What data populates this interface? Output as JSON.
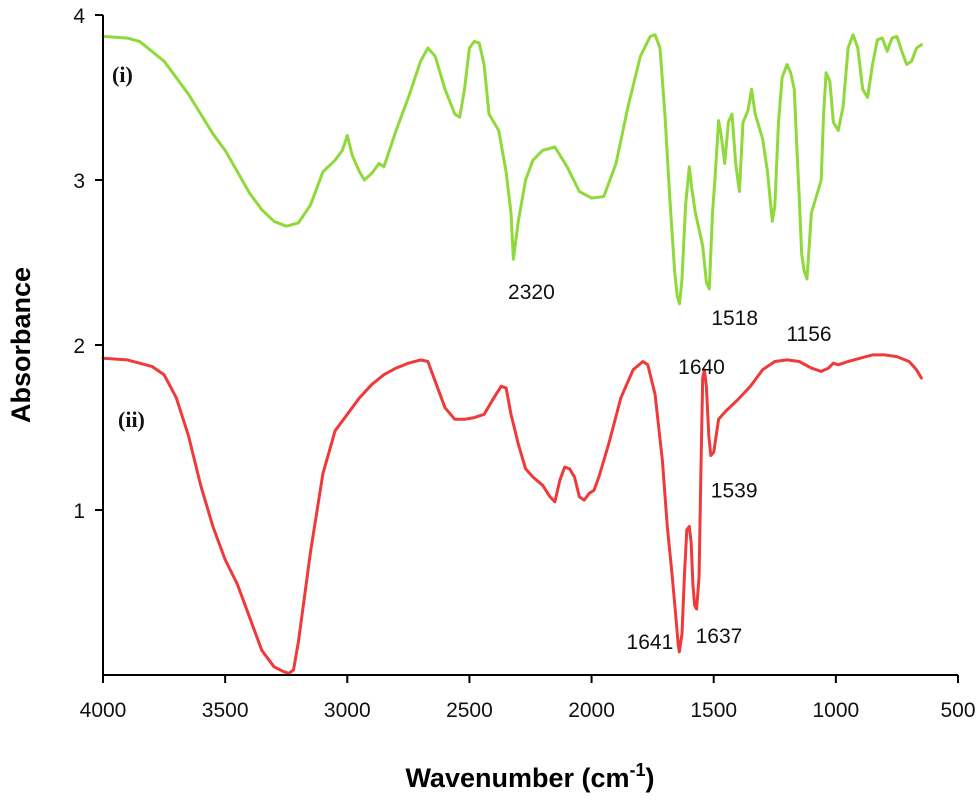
{
  "chart_data": {
    "type": "line",
    "xlabel": "Wavenumber (cm",
    "xlabel_sup": "-1",
    "xlabel_close": ")",
    "ylabel": "Absorbance",
    "xlim": [
      4000,
      500
    ],
    "ylim": [
      0,
      4
    ],
    "x_ticks": [
      "4000",
      "3500",
      "3000",
      "2500",
      "2000",
      "1500",
      "1000",
      "500"
    ],
    "y_ticks": [
      "1",
      "2",
      "3",
      "4"
    ],
    "grid": false,
    "series": [
      {
        "name": "(i)",
        "color": "#8fd93a",
        "points": [
          [
            4000,
            3.87
          ],
          [
            3900,
            3.86
          ],
          [
            3850,
            3.84
          ],
          [
            3800,
            3.78
          ],
          [
            3750,
            3.72
          ],
          [
            3700,
            3.62
          ],
          [
            3650,
            3.52
          ],
          [
            3600,
            3.4
          ],
          [
            3550,
            3.28
          ],
          [
            3500,
            3.18
          ],
          [
            3450,
            3.05
          ],
          [
            3400,
            2.92
          ],
          [
            3350,
            2.82
          ],
          [
            3300,
            2.75
          ],
          [
            3250,
            2.72
          ],
          [
            3200,
            2.74
          ],
          [
            3150,
            2.85
          ],
          [
            3100,
            3.05
          ],
          [
            3050,
            3.12
          ],
          [
            3020,
            3.18
          ],
          [
            3000,
            3.27
          ],
          [
            2980,
            3.15
          ],
          [
            2950,
            3.05
          ],
          [
            2930,
            3.0
          ],
          [
            2900,
            3.04
          ],
          [
            2870,
            3.1
          ],
          [
            2850,
            3.08
          ],
          [
            2800,
            3.3
          ],
          [
            2750,
            3.5
          ],
          [
            2700,
            3.72
          ],
          [
            2670,
            3.8
          ],
          [
            2640,
            3.75
          ],
          [
            2600,
            3.55
          ],
          [
            2560,
            3.4
          ],
          [
            2540,
            3.38
          ],
          [
            2520,
            3.55
          ],
          [
            2500,
            3.8
          ],
          [
            2480,
            3.84
          ],
          [
            2460,
            3.83
          ],
          [
            2440,
            3.7
          ],
          [
            2420,
            3.4
          ],
          [
            2380,
            3.3
          ],
          [
            2350,
            3.05
          ],
          [
            2330,
            2.8
          ],
          [
            2320,
            2.52
          ],
          [
            2300,
            2.75
          ],
          [
            2270,
            3.0
          ],
          [
            2240,
            3.12
          ],
          [
            2200,
            3.18
          ],
          [
            2150,
            3.2
          ],
          [
            2100,
            3.08
          ],
          [
            2050,
            2.93
          ],
          [
            2000,
            2.89
          ],
          [
            1950,
            2.9
          ],
          [
            1900,
            3.1
          ],
          [
            1850,
            3.45
          ],
          [
            1800,
            3.75
          ],
          [
            1760,
            3.87
          ],
          [
            1740,
            3.88
          ],
          [
            1720,
            3.8
          ],
          [
            1700,
            3.4
          ],
          [
            1680,
            2.9
          ],
          [
            1660,
            2.45
          ],
          [
            1650,
            2.3
          ],
          [
            1640,
            2.25
          ],
          [
            1630,
            2.4
          ],
          [
            1615,
            2.85
          ],
          [
            1600,
            3.08
          ],
          [
            1590,
            2.95
          ],
          [
            1575,
            2.8
          ],
          [
            1560,
            2.7
          ],
          [
            1545,
            2.6
          ],
          [
            1530,
            2.38
          ],
          [
            1518,
            2.34
          ],
          [
            1505,
            2.8
          ],
          [
            1495,
            3.0
          ],
          [
            1480,
            3.36
          ],
          [
            1470,
            3.28
          ],
          [
            1455,
            3.1
          ],
          [
            1440,
            3.35
          ],
          [
            1425,
            3.4
          ],
          [
            1410,
            3.1
          ],
          [
            1395,
            2.93
          ],
          [
            1380,
            3.35
          ],
          [
            1360,
            3.42
          ],
          [
            1345,
            3.55
          ],
          [
            1330,
            3.4
          ],
          [
            1300,
            3.25
          ],
          [
            1280,
            3.05
          ],
          [
            1260,
            2.75
          ],
          [
            1250,
            2.84
          ],
          [
            1235,
            3.35
          ],
          [
            1220,
            3.62
          ],
          [
            1200,
            3.7
          ],
          [
            1185,
            3.65
          ],
          [
            1170,
            3.55
          ],
          [
            1160,
            3.2
          ],
          [
            1150,
            2.9
          ],
          [
            1140,
            2.55
          ],
          [
            1130,
            2.45
          ],
          [
            1118,
            2.4
          ],
          [
            1100,
            2.8
          ],
          [
            1080,
            2.9
          ],
          [
            1060,
            3.0
          ],
          [
            1050,
            3.4
          ],
          [
            1040,
            3.65
          ],
          [
            1025,
            3.6
          ],
          [
            1010,
            3.35
          ],
          [
            990,
            3.3
          ],
          [
            970,
            3.45
          ],
          [
            950,
            3.8
          ],
          [
            930,
            3.88
          ],
          [
            910,
            3.8
          ],
          [
            890,
            3.55
          ],
          [
            870,
            3.5
          ],
          [
            850,
            3.7
          ],
          [
            830,
            3.85
          ],
          [
            810,
            3.86
          ],
          [
            790,
            3.78
          ],
          [
            770,
            3.86
          ],
          [
            750,
            3.87
          ],
          [
            730,
            3.78
          ],
          [
            710,
            3.7
          ],
          [
            690,
            3.72
          ],
          [
            670,
            3.8
          ],
          [
            650,
            3.82
          ]
        ]
      },
      {
        "name": "(ii)",
        "color": "#ee3a3a",
        "points": [
          [
            4000,
            1.92
          ],
          [
            3900,
            1.91
          ],
          [
            3800,
            1.87
          ],
          [
            3750,
            1.82
          ],
          [
            3700,
            1.68
          ],
          [
            3650,
            1.45
          ],
          [
            3600,
            1.15
          ],
          [
            3550,
            0.9
          ],
          [
            3500,
            0.7
          ],
          [
            3450,
            0.55
          ],
          [
            3400,
            0.35
          ],
          [
            3350,
            0.15
          ],
          [
            3300,
            0.05
          ],
          [
            3260,
            0.02
          ],
          [
            3240,
            0.01
          ],
          [
            3220,
            0.03
          ],
          [
            3200,
            0.2
          ],
          [
            3150,
            0.75
          ],
          [
            3100,
            1.22
          ],
          [
            3050,
            1.48
          ],
          [
            3000,
            1.58
          ],
          [
            2950,
            1.68
          ],
          [
            2900,
            1.76
          ],
          [
            2850,
            1.82
          ],
          [
            2800,
            1.86
          ],
          [
            2750,
            1.89
          ],
          [
            2700,
            1.91
          ],
          [
            2670,
            1.9
          ],
          [
            2640,
            1.78
          ],
          [
            2600,
            1.62
          ],
          [
            2560,
            1.55
          ],
          [
            2520,
            1.55
          ],
          [
            2480,
            1.56
          ],
          [
            2440,
            1.58
          ],
          [
            2400,
            1.68
          ],
          [
            2370,
            1.75
          ],
          [
            2350,
            1.74
          ],
          [
            2330,
            1.58
          ],
          [
            2300,
            1.4
          ],
          [
            2270,
            1.25
          ],
          [
            2240,
            1.2
          ],
          [
            2200,
            1.15
          ],
          [
            2170,
            1.08
          ],
          [
            2150,
            1.05
          ],
          [
            2130,
            1.18
          ],
          [
            2110,
            1.26
          ],
          [
            2090,
            1.25
          ],
          [
            2070,
            1.2
          ],
          [
            2050,
            1.08
          ],
          [
            2030,
            1.06
          ],
          [
            2010,
            1.1
          ],
          [
            1990,
            1.12
          ],
          [
            1970,
            1.2
          ],
          [
            1930,
            1.4
          ],
          [
            1880,
            1.68
          ],
          [
            1830,
            1.85
          ],
          [
            1790,
            1.9
          ],
          [
            1770,
            1.88
          ],
          [
            1740,
            1.7
          ],
          [
            1710,
            1.3
          ],
          [
            1690,
            0.9
          ],
          [
            1670,
            0.6
          ],
          [
            1655,
            0.35
          ],
          [
            1645,
            0.18
          ],
          [
            1641,
            0.14
          ],
          [
            1630,
            0.25
          ],
          [
            1620,
            0.6
          ],
          [
            1610,
            0.88
          ],
          [
            1600,
            0.9
          ],
          [
            1592,
            0.8
          ],
          [
            1585,
            0.55
          ],
          [
            1578,
            0.42
          ],
          [
            1570,
            0.4
          ],
          [
            1560,
            0.6
          ],
          [
            1553,
            1.2
          ],
          [
            1545,
            1.8
          ],
          [
            1538,
            1.85
          ],
          [
            1530,
            1.75
          ],
          [
            1520,
            1.45
          ],
          [
            1512,
            1.33
          ],
          [
            1500,
            1.35
          ],
          [
            1480,
            1.55
          ],
          [
            1450,
            1.6
          ],
          [
            1400,
            1.67
          ],
          [
            1350,
            1.75
          ],
          [
            1300,
            1.85
          ],
          [
            1250,
            1.9
          ],
          [
            1200,
            1.91
          ],
          [
            1150,
            1.9
          ],
          [
            1100,
            1.86
          ],
          [
            1060,
            1.84
          ],
          [
            1030,
            1.86
          ],
          [
            1010,
            1.89
          ],
          [
            990,
            1.88
          ],
          [
            950,
            1.9
          ],
          [
            900,
            1.92
          ],
          [
            850,
            1.94
          ],
          [
            800,
            1.94
          ],
          [
            750,
            1.93
          ],
          [
            700,
            1.9
          ],
          [
            670,
            1.85
          ],
          [
            650,
            1.8
          ]
        ]
      }
    ],
    "annotations": [
      {
        "text": "2320",
        "x": 2320,
        "y": 2.52,
        "series": 0
      },
      {
        "text": "1640",
        "x": 1640,
        "y": 2.25,
        "series": 0
      },
      {
        "text": "1518",
        "x": 1518,
        "y": 2.34,
        "series": 0
      },
      {
        "text": "1156",
        "x": 1118,
        "y": 2.4,
        "series": 0
      },
      {
        "text": "1539",
        "x": 1512,
        "y": 1.33,
        "series": 1
      },
      {
        "text": "1641",
        "x": 1641,
        "y": 0.14,
        "series": 1
      },
      {
        "text": "1637",
        "x": 1570,
        "y": 0.4,
        "series": 1
      }
    ]
  }
}
